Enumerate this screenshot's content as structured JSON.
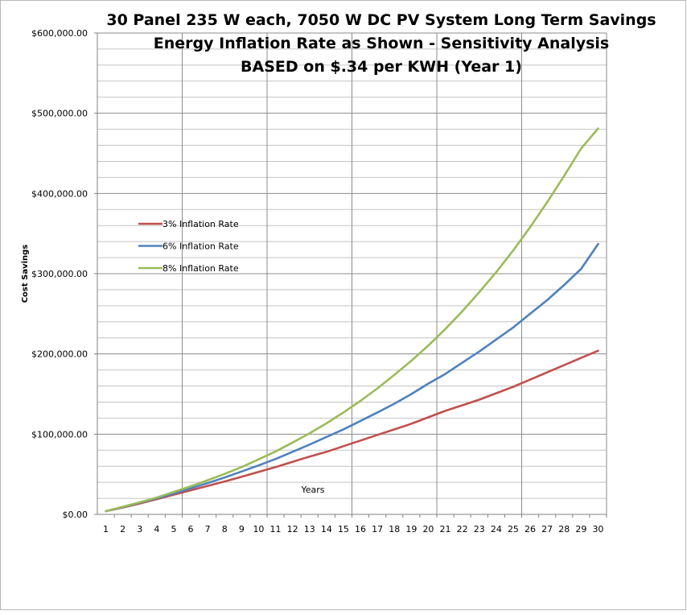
{
  "chart_data": {
    "type": "line",
    "title": [
      "30 Panel 235 W each, 7050 W DC PV System Long Term Savings",
      "Energy Inflation Rate as Shown - Sensitivity Analysis",
      "BASED on $.34 per KWH (Year 1)"
    ],
    "xlabel": "Years",
    "ylabel": "Cost Savings",
    "x": [
      1,
      2,
      3,
      4,
      5,
      6,
      7,
      8,
      9,
      10,
      11,
      12,
      13,
      14,
      15,
      16,
      17,
      18,
      19,
      20,
      21,
      22,
      23,
      24,
      25,
      26,
      27,
      28,
      29,
      30
    ],
    "ylim": [
      0,
      600000
    ],
    "yticks": [
      {
        "value": 0,
        "label": "$0.00"
      },
      {
        "value": 100000,
        "label": "$100,000.00"
      },
      {
        "value": 200000,
        "label": "$200,000.00"
      },
      {
        "value": 300000,
        "label": "$300,000.00"
      },
      {
        "value": 400000,
        "label": "$400,000.00"
      },
      {
        "value": 500000,
        "label": "$500,000.00"
      },
      {
        "value": 600000,
        "label": "$600,000.00"
      }
    ],
    "grid": true,
    "legend_position": "upper-left",
    "series": [
      {
        "name": "3% Inflation  Rate",
        "color": "#c0504d",
        "values": [
          4000,
          8500,
          13500,
          19000,
          24500,
          30000,
          35500,
          41000,
          47000,
          53000,
          59000,
          65500,
          72000,
          78000,
          85000,
          92000,
          99000,
          106000,
          113000,
          121000,
          129000,
          136000,
          143000,
          151000,
          159000,
          168000,
          177000,
          186000,
          195000,
          204000
        ]
      },
      {
        "name": "6% Inflation  Rate",
        "color": "#4f81bd",
        "values": [
          4000,
          9000,
          14500,
          20000,
          26000,
          32500,
          39000,
          46000,
          53500,
          61000,
          69000,
          78000,
          87000,
          96500,
          106000,
          116500,
          127000,
          138000,
          150000,
          163000,
          175000,
          189000,
          203000,
          218000,
          233000,
          250000,
          267000,
          286000,
          306000,
          337000
        ]
      },
      {
        "name": "8% Inflation  Rate",
        "color": "#9bbb59",
        "values": [
          4000,
          9500,
          15000,
          21000,
          28000,
          35000,
          42500,
          50500,
          59000,
          68500,
          78500,
          89500,
          101000,
          113500,
          127000,
          141500,
          157000,
          174000,
          191500,
          210500,
          231000,
          253000,
          277000,
          302000,
          329000,
          358000,
          389000,
          422000,
          456000,
          481000
        ]
      }
    ]
  }
}
